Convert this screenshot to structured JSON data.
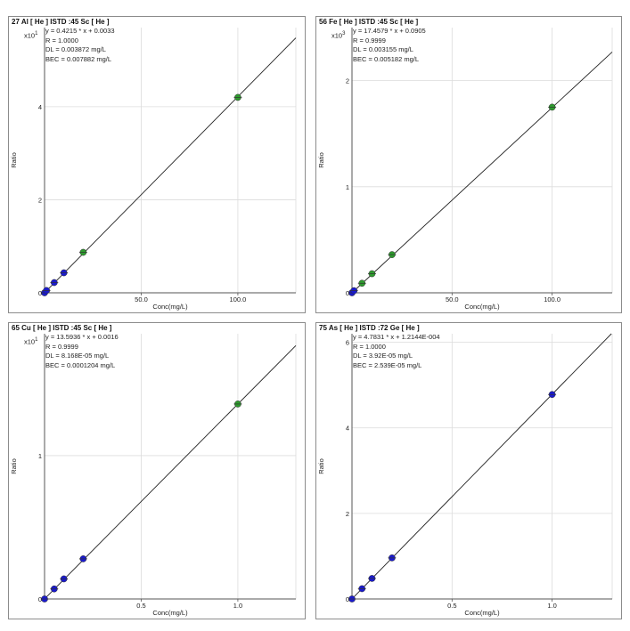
{
  "colors": {
    "blue_point": "#1a1acc",
    "green_point": "#2e9a2e",
    "line": "#222222",
    "grid": "#dcdcdc",
    "frame": "#8c8c8c"
  },
  "chart_data": [
    {
      "type": "scatter",
      "title": "27  Al  [ He ]  ISTD :45  Sc  [ He ]",
      "equation": "y = 0.4215 * x  + 0.0033",
      "r": "R = 1.0000",
      "dl": "DL = 0.003872 mg/L",
      "bec": "BEC = 0.007882 mg/L",
      "scale_base": "x10",
      "scale_exp": "1",
      "xlabel": "Conc(mg/L)",
      "ylabel": "Ratio",
      "xlim": [
        0,
        130
      ],
      "ylim": [
        0,
        5.7
      ],
      "xticks": [
        {
          "v": 50,
          "label": "50.0"
        },
        {
          "v": 100,
          "label": "100.0"
        }
      ],
      "yticks": [
        {
          "v": 0,
          "label": "0"
        },
        {
          "v": 2,
          "label": "2"
        },
        {
          "v": 4,
          "label": "4"
        }
      ],
      "slope": 0.04215,
      "intercept": 0.00033,
      "grid": true,
      "points": [
        {
          "x": 0,
          "y": 0.0,
          "color": "blue"
        },
        {
          "x": 1,
          "y": 0.05,
          "color": "blue"
        },
        {
          "x": 5,
          "y": 0.22,
          "color": "blue"
        },
        {
          "x": 10,
          "y": 0.43,
          "color": "blue"
        },
        {
          "x": 20,
          "y": 0.87,
          "color": "green"
        },
        {
          "x": 100,
          "y": 4.2,
          "color": "green"
        }
      ]
    },
    {
      "type": "scatter",
      "title": "56  Fe  [ He ]  ISTD :45  Sc  [ He ]",
      "equation": "y = 17.4579 * x  + 0.0905",
      "r": "R = 0.9999",
      "dl": "DL = 0.003155 mg/L",
      "bec": "BEC = 0.005182 mg/L",
      "scale_base": "x10",
      "scale_exp": "3",
      "xlabel": "Conc(mg/L)",
      "ylabel": "Ratio",
      "xlim": [
        0,
        130
      ],
      "ylim": [
        0,
        2.5
      ],
      "xticks": [
        {
          "v": 50,
          "label": "50.0"
        },
        {
          "v": 100,
          "label": "100.0"
        }
      ],
      "yticks": [
        {
          "v": 0,
          "label": "0"
        },
        {
          "v": 1,
          "label": "1"
        },
        {
          "v": 2,
          "label": "2"
        }
      ],
      "slope": 0.01746,
      "intercept": 0.0,
      "grid": true,
      "points": [
        {
          "x": 0,
          "y": 0.0,
          "color": "blue"
        },
        {
          "x": 1,
          "y": 0.02,
          "color": "blue"
        },
        {
          "x": 5,
          "y": 0.09,
          "color": "green"
        },
        {
          "x": 10,
          "y": 0.18,
          "color": "green"
        },
        {
          "x": 20,
          "y": 0.36,
          "color": "green"
        },
        {
          "x": 100,
          "y": 1.75,
          "color": "green"
        }
      ]
    },
    {
      "type": "scatter",
      "title": "65  Cu  [ He ]  ISTD :45  Sc  [ He ]",
      "equation": "y = 13.5936 * x  + 0.0016",
      "r": "R = 0.9999",
      "dl": "DL = 8.168E-05 mg/L",
      "bec": "BEC = 0.0001204 mg/L",
      "scale_base": "x10",
      "scale_exp": "1",
      "xlabel": "Conc(mg/L)",
      "ylabel": "Ratio",
      "xlim": [
        0,
        1.3
      ],
      "ylim": [
        0,
        1.85
      ],
      "xticks": [
        {
          "v": 0.5,
          "label": "0.5"
        },
        {
          "v": 1.0,
          "label": "1.0"
        }
      ],
      "yticks": [
        {
          "v": 0,
          "label": "0"
        },
        {
          "v": 1,
          "label": "1"
        }
      ],
      "slope": 1.35936,
      "intercept": 0.00016,
      "grid": true,
      "points": [
        {
          "x": 0,
          "y": 0.0,
          "color": "blue"
        },
        {
          "x": 0.05,
          "y": 0.07,
          "color": "blue"
        },
        {
          "x": 0.1,
          "y": 0.14,
          "color": "blue"
        },
        {
          "x": 0.2,
          "y": 0.28,
          "color": "blue"
        },
        {
          "x": 1.0,
          "y": 1.36,
          "color": "green"
        }
      ]
    },
    {
      "type": "scatter",
      "title": "75  As  [ He ]  ISTD :72  Ge  [ He ]",
      "equation": "y = 4.7831 * x  + 1.2144E-004",
      "r": "R = 1.0000",
      "dl": "DL = 3.92E-05 mg/L",
      "bec": "BEC = 2.539E-05 mg/L",
      "scale_base": "",
      "scale_exp": "",
      "xlabel": "Conc(mg/L)",
      "ylabel": "Ratio",
      "xlim": [
        0,
        1.3
      ],
      "ylim": [
        0,
        6.2
      ],
      "xticks": [
        {
          "v": 0.5,
          "label": "0.5"
        },
        {
          "v": 1.0,
          "label": "1.0"
        }
      ],
      "yticks": [
        {
          "v": 0,
          "label": "0"
        },
        {
          "v": 2,
          "label": "2"
        },
        {
          "v": 4,
          "label": "4"
        },
        {
          "v": 6,
          "label": "6"
        }
      ],
      "slope": 4.7831,
      "intercept": 0.00012144,
      "grid": true,
      "points": [
        {
          "x": 0,
          "y": 0.0,
          "color": "blue"
        },
        {
          "x": 0.05,
          "y": 0.24,
          "color": "blue"
        },
        {
          "x": 0.1,
          "y": 0.48,
          "color": "blue"
        },
        {
          "x": 0.2,
          "y": 0.96,
          "color": "blue"
        },
        {
          "x": 1.0,
          "y": 4.78,
          "color": "blue"
        }
      ]
    }
  ]
}
